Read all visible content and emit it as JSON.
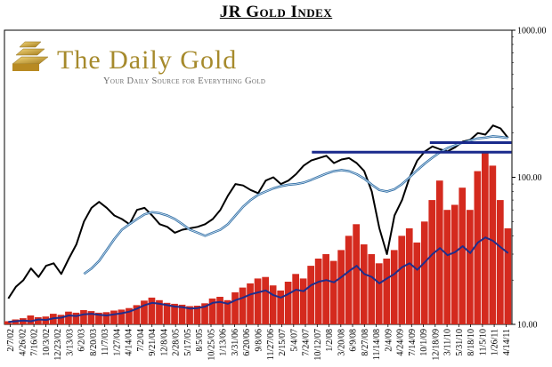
{
  "chart_data": {
    "type": "line",
    "title": "JR Gold Index",
    "watermark": {
      "name": "The Daily Gold",
      "tagline": "Your Daily Source for Everything Gold"
    },
    "y_scale": "log",
    "ylim": [
      10,
      1000
    ],
    "y_ticks": [
      "1000.00",
      "100.00",
      "10.00"
    ],
    "x_ticks": [
      "2/7/02",
      "4/26/02",
      "7/16/02",
      "10/3/02",
      "12/23/02",
      "3/13/03",
      "6/2/03",
      "8/20/03",
      "11/7/03",
      "1/27/04",
      "4/14/04",
      "7/2/04",
      "9/21/04",
      "12/8/04",
      "2/28/05",
      "5/17/05",
      "8/5/05",
      "10/25/05",
      "1/13/06",
      "3/31/06",
      "6/20/06",
      "9/8/06",
      "11/27/06",
      "2/15/07",
      "5/4/07",
      "7/24/07",
      "10/12/07",
      "1/2/08",
      "3/20/08",
      "6/9/08",
      "8/27/08",
      "11/14/08",
      "2/4/09",
      "4/24/09",
      "7/14/09",
      "10/1/09",
      "12/18/09",
      "3/11/10",
      "5/31/10",
      "8/18/10",
      "11/5/10",
      "1/26/11",
      "4/14/11"
    ],
    "series": [
      {
        "values": [
          15,
          18,
          20,
          24,
          21,
          25,
          26,
          22,
          28,
          35,
          50,
          62,
          68,
          62,
          55,
          52,
          48,
          60,
          62,
          55,
          48,
          46,
          42,
          44,
          45,
          46,
          48,
          52,
          60,
          75,
          90,
          88,
          82,
          78,
          95,
          100,
          90,
          95,
          105,
          120,
          130,
          135,
          140,
          125,
          132,
          135,
          125,
          110,
          80,
          45,
          30,
          55,
          70,
          100,
          130,
          150,
          162,
          155,
          150,
          160,
          175,
          180,
          200,
          195,
          225,
          215,
          185
        ],
        "color": "#000000"
      },
      {
        "values": [
          null,
          null,
          null,
          null,
          null,
          null,
          null,
          null,
          null,
          null,
          22,
          24,
          27,
          32,
          38,
          44,
          48,
          52,
          56,
          58,
          57,
          55,
          52,
          48,
          44,
          42,
          40,
          42,
          44,
          48,
          55,
          63,
          70,
          76,
          80,
          84,
          87,
          89,
          90,
          92,
          96,
          101,
          106,
          110,
          112,
          110,
          105,
          98,
          89,
          82,
          80,
          83,
          90,
          100,
          112,
          124,
          136,
          148,
          158,
          165,
          172,
          178,
          184,
          186,
          190,
          188,
          185
        ],
        "color": "#2e6da4"
      },
      {
        "values": [
          10.4,
          10.5,
          10.6,
          10.5,
          10.8,
          10.7,
          11.0,
          11.1,
          11.5,
          11.4,
          11.7,
          11.8,
          11.6,
          11.5,
          11.7,
          11.9,
          12.2,
          12.8,
          13.5,
          14.0,
          13.8,
          13.5,
          13.2,
          13.1,
          12.8,
          12.9,
          13.2,
          14.0,
          14.2,
          13.8,
          14.6,
          15.2,
          16.0,
          16.5,
          17.0,
          15.8,
          15.2,
          16.1,
          17.2,
          16.8,
          18.5,
          19.5,
          20.0,
          19.3,
          21.0,
          23.0,
          25.0,
          22.0,
          21.0,
          19.0,
          20.5,
          22.0,
          24.5,
          26.0,
          23.5,
          26.5,
          30.0,
          33.0,
          29.5,
          31.0,
          34.0,
          30.5,
          36.0,
          39.0,
          37.0,
          33.5,
          30.5
        ],
        "color": "#1f2e8c"
      }
    ],
    "volume_bars": {
      "color": "#d42a1e",
      "values": [
        10.5,
        10.8,
        11.0,
        11.5,
        11.2,
        11.3,
        11.8,
        11.6,
        12.2,
        12.0,
        12.5,
        12.3,
        12.0,
        12.1,
        12.4,
        12.6,
        12.9,
        13.5,
        14.5,
        15.2,
        14.6,
        14.0,
        13.8,
        13.6,
        13.3,
        13.4,
        13.9,
        15.0,
        15.4,
        14.6,
        16.5,
        17.8,
        19.0,
        20.5,
        21.0,
        18.4,
        17.0,
        19.5,
        22.0,
        20.5,
        25.0,
        28.0,
        30.0,
        27.0,
        32.0,
        40.0,
        48.0,
        35.0,
        30.0,
        26.0,
        28.0,
        32.0,
        40.0,
        45.0,
        36.0,
        50.0,
        70.0,
        95.0,
        60.0,
        65.0,
        85.0,
        60.0,
        110.0,
        150.0,
        120.0,
        70.0,
        45.0
      ]
    },
    "resistance_lines": [
      {
        "level": 148,
        "range": [
          "10/12/07",
          "4/14/11"
        ]
      },
      {
        "level": 172,
        "range": [
          "12/18/09",
          "4/14/11"
        ]
      }
    ],
    "grid": false
  }
}
